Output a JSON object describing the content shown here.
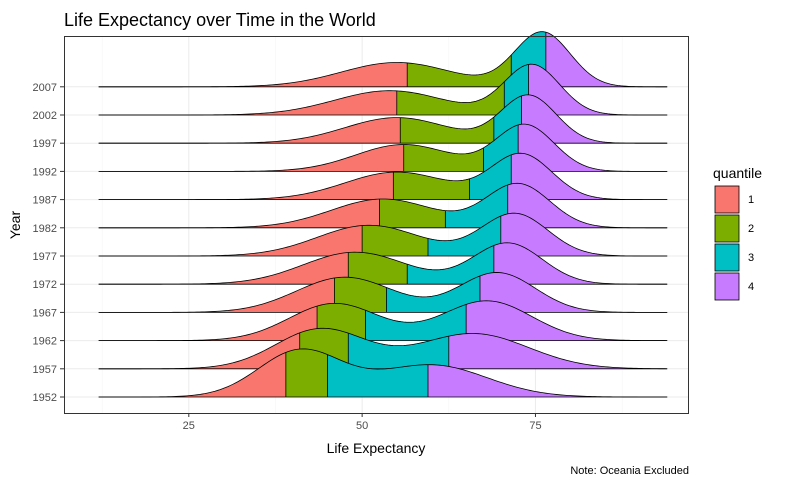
{
  "chart_data": {
    "type": "ridgeline",
    "title": "Life Expectancy over Time in the World",
    "xlabel": "Life Expectancy",
    "ylabel": "Year",
    "caption": "Note: Oceania Excluded",
    "xlim": [
      7,
      97
    ],
    "x_ticks": [
      25,
      50,
      75
    ],
    "categories": [
      "1952",
      "1957",
      "1962",
      "1967",
      "1972",
      "1977",
      "1982",
      "1987",
      "1992",
      "1997",
      "2002",
      "2007"
    ],
    "x_range": [
      12,
      94
    ],
    "quartiles": [
      [
        39,
        45,
        59.5
      ],
      [
        41,
        48,
        62.5
      ],
      [
        43.5,
        50.5,
        65
      ],
      [
        46,
        53.5,
        67
      ],
      [
        48,
        56.5,
        69
      ],
      [
        50,
        59.5,
        70
      ],
      [
        52.5,
        62,
        71
      ],
      [
        54.5,
        65.5,
        71.5
      ],
      [
        56,
        67.5,
        72.5
      ],
      [
        55.5,
        69,
        73
      ],
      [
        55,
        70.5,
        74
      ],
      [
        56.5,
        71.5,
        76.5
      ]
    ],
    "density_peaks": [
      [
        {
          "m": 41,
          "s": 6,
          "w": 0.72
        },
        {
          "m": 60,
          "s": 8,
          "w": 0.5
        }
      ],
      [
        {
          "m": 44,
          "s": 6.5,
          "w": 0.62
        },
        {
          "m": 66,
          "s": 8,
          "w": 0.55
        }
      ],
      [
        {
          "m": 46,
          "s": 6.5,
          "w": 0.58
        },
        {
          "m": 68,
          "s": 6.5,
          "w": 0.62
        }
      ],
      [
        {
          "m": 47.5,
          "s": 7,
          "w": 0.55
        },
        {
          "m": 69.5,
          "s": 5.5,
          "w": 0.62
        }
      ],
      [
        {
          "m": 49,
          "s": 7.5,
          "w": 0.5
        },
        {
          "m": 71,
          "s": 5,
          "w": 0.64
        }
      ],
      [
        {
          "m": 51,
          "s": 7.5,
          "w": 0.48
        },
        {
          "m": 72,
          "s": 4.8,
          "w": 0.66
        }
      ],
      [
        {
          "m": 53,
          "s": 7.5,
          "w": 0.45
        },
        {
          "m": 72.5,
          "s": 4.6,
          "w": 0.68
        }
      ],
      [
        {
          "m": 55,
          "s": 7.5,
          "w": 0.43
        },
        {
          "m": 73,
          "s": 4.4,
          "w": 0.7
        }
      ],
      [
        {
          "m": 56,
          "s": 7,
          "w": 0.42
        },
        {
          "m": 73.5,
          "s": 4.2,
          "w": 0.72
        }
      ],
      [
        {
          "m": 55,
          "s": 7.5,
          "w": 0.4
        },
        {
          "m": 74,
          "s": 4,
          "w": 0.74
        }
      ],
      [
        {
          "m": 54,
          "s": 8,
          "w": 0.38
        },
        {
          "m": 74.5,
          "s": 4,
          "w": 0.78
        }
      ],
      [
        {
          "m": 55,
          "s": 8,
          "w": 0.38
        },
        {
          "m": 76,
          "s": 4,
          "w": 0.85
        }
      ]
    ],
    "legend": {
      "title": "quantile",
      "position": "right",
      "entries": [
        {
          "label": "1",
          "color": "#F8766D"
        },
        {
          "label": "2",
          "color": "#7CAE00"
        },
        {
          "label": "3",
          "color": "#00BFC4"
        },
        {
          "label": "4",
          "color": "#C77CFF"
        }
      ]
    },
    "grid": true
  }
}
